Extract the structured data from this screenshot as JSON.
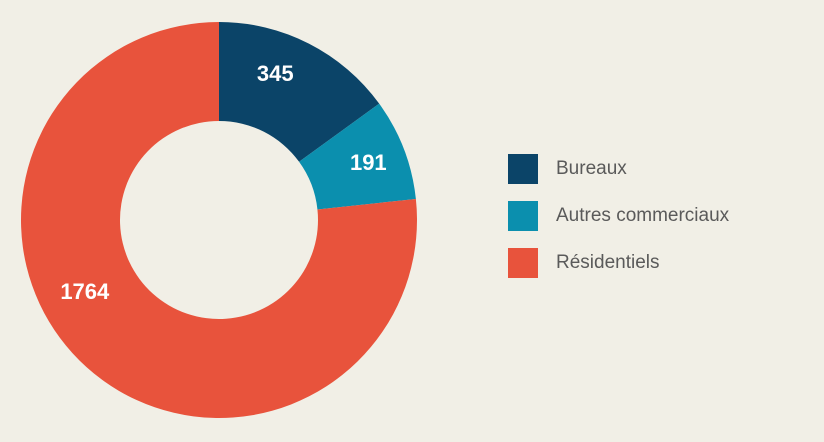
{
  "chart_data": {
    "type": "pie",
    "donut": true,
    "start": "12 o'clock, clockwise",
    "categories": [
      "Bureaux",
      "Autres commerciaux",
      "Résidentiels"
    ],
    "values": [
      345,
      191,
      1764
    ],
    "value_labels": [
      "345",
      "191",
      "1764"
    ],
    "colors": [
      "#0b4468",
      "#0b8fae",
      "#e8533c"
    ],
    "legend": "right",
    "background": "#f1efe6"
  }
}
